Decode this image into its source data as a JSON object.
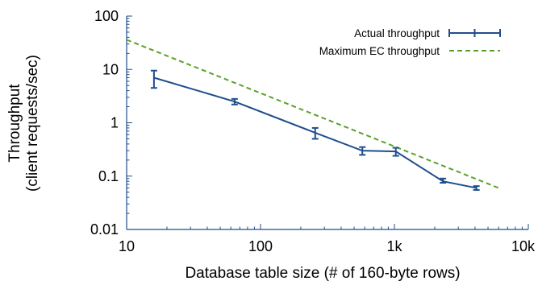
{
  "chart_data": {
    "type": "line",
    "xlabel": "Database table size (# of 160-byte rows)",
    "ylabel_lines": [
      "Throughput",
      "(client requests/sec)"
    ],
    "x_scale": "log",
    "y_scale": "log",
    "xlim": [
      10,
      10000
    ],
    "ylim": [
      0.01,
      100
    ],
    "x_tick_labels": [
      {
        "value": 10,
        "label": "10"
      },
      {
        "value": 100,
        "label": "100"
      },
      {
        "value": 1000,
        "label": "1k"
      },
      {
        "value": 10000,
        "label": "10k"
      }
    ],
    "y_tick_labels": [
      {
        "value": 0.01,
        "label": "0.01"
      },
      {
        "value": 0.1,
        "label": "0.1"
      },
      {
        "value": 1,
        "label": "1"
      },
      {
        "value": 10,
        "label": "10"
      },
      {
        "value": 100,
        "label": "100"
      }
    ],
    "grid": false,
    "legend_position": "top-right",
    "series": [
      {
        "name": "Actual throughput",
        "style": "solid-with-errorbars",
        "color": "#1f4e8c",
        "x": [
          16,
          64,
          256,
          576,
          1024,
          2304,
          4096
        ],
        "y": [
          7.0,
          2.5,
          0.65,
          0.3,
          0.29,
          0.08,
          0.06
        ],
        "y_low": [
          4.5,
          2.2,
          0.5,
          0.25,
          0.24,
          0.075,
          0.055
        ],
        "y_high": [
          9.5,
          2.8,
          0.8,
          0.35,
          0.34,
          0.09,
          0.065
        ]
      },
      {
        "name": "Maximum EC throughput",
        "style": "dashed",
        "color": "#5aa02c",
        "x": [
          10,
          6000
        ],
        "y": [
          36,
          0.06
        ]
      }
    ]
  }
}
